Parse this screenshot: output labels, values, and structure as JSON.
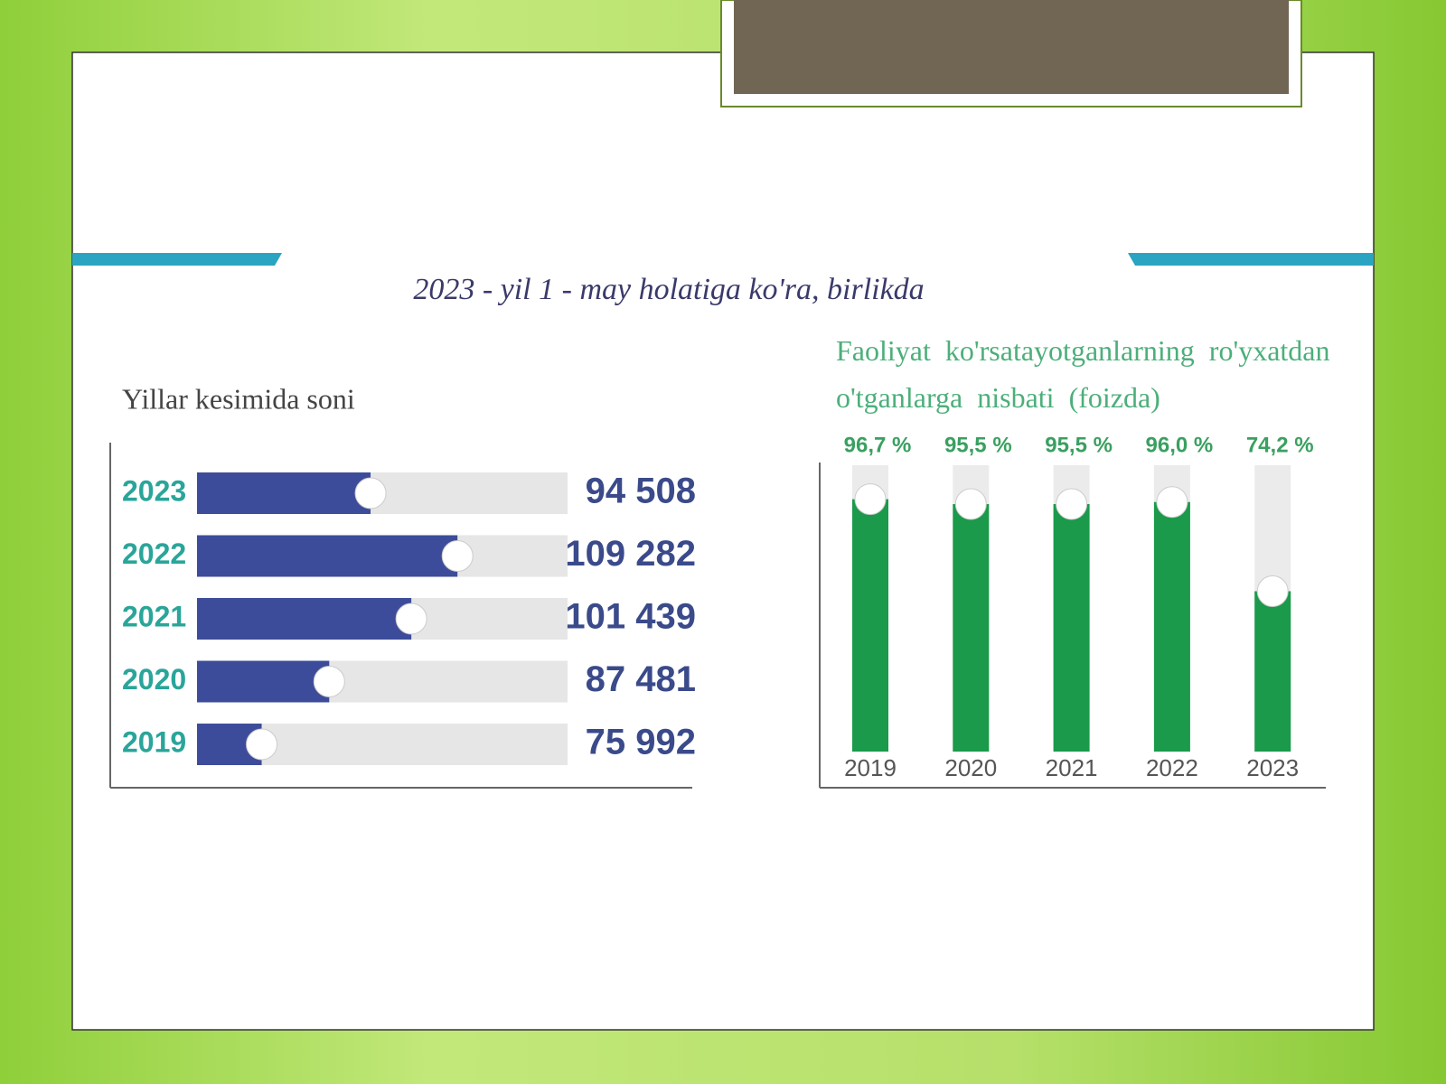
{
  "caption": "2023 - yil 1 - may holatiga ko'ra, birlikda",
  "chart_data": [
    {
      "type": "hbar",
      "title": "Yillar kesimida soni",
      "categories": [
        "2023",
        "2022",
        "2021",
        "2020",
        "2019"
      ],
      "values": [
        94508,
        109282,
        101439,
        87481,
        75992
      ],
      "value_labels": [
        "94 508",
        "109 282",
        "101 439",
        "87 481",
        "75 992"
      ],
      "color": "#3d4c9a",
      "xlim": [
        65000,
        128000
      ]
    },
    {
      "type": "bar",
      "title": "Faoliyat ko'rsatayotganlarning ro'yxatdan o'tganlarga nisbati (foizda)",
      "categories": [
        "2019",
        "2020",
        "2021",
        "2022",
        "2023"
      ],
      "values": [
        96.7,
        95.5,
        95.5,
        96.0,
        74.2
      ],
      "value_labels": [
        "96,7 %",
        "95,5 %",
        "95,5 %",
        "96,0 %",
        "74,2 %"
      ],
      "color": "#1a9a4a",
      "ylim": [
        35,
        105
      ]
    }
  ]
}
